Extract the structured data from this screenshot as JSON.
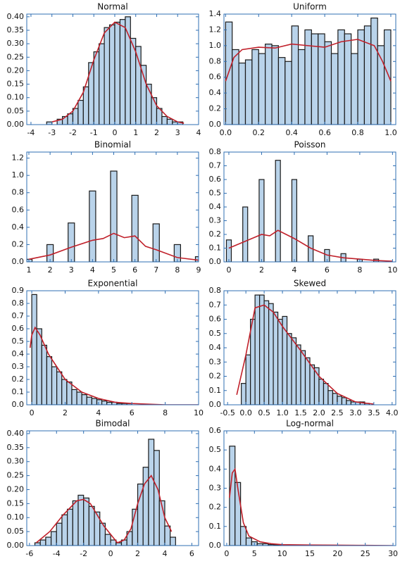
{
  "chart_data": [
    {
      "type": "histogram",
      "title": "Normal",
      "color": "#b9d3ea",
      "edgecolor": "#1a1a1a",
      "bins": [
        -3.25,
        -3,
        -2.75,
        -2.5,
        -2.25,
        -2,
        -1.75,
        -1.5,
        -1.25,
        -1,
        -0.75,
        -0.5,
        -0.25,
        0,
        0.25,
        0.5,
        0.75,
        1,
        1.25,
        1.5,
        1.75,
        2,
        2.25,
        2.5,
        2.75,
        3,
        3.25
      ],
      "values": [
        0.01,
        0.0,
        0.02,
        0.03,
        0.04,
        0.06,
        0.09,
        0.14,
        0.23,
        0.27,
        0.3,
        0.36,
        0.37,
        0.38,
        0.39,
        0.4,
        0.32,
        0.29,
        0.22,
        0.15,
        0.1,
        0.06,
        0.03,
        0.02,
        0.01,
        0.01
      ],
      "density": {
        "color": "#c0202a",
        "x": [
          -3,
          -2.5,
          -2,
          -1.5,
          -1,
          -0.5,
          0,
          0.5,
          1,
          1.5,
          2,
          2.5,
          3,
          3.3
        ],
        "values": [
          0.01,
          0.02,
          0.05,
          0.12,
          0.24,
          0.34,
          0.38,
          0.36,
          0.27,
          0.15,
          0.07,
          0.03,
          0.01,
          0.005
        ]
      },
      "xlim": [
        -4.2,
        4
      ],
      "ylim": [
        0,
        0.41
      ],
      "xticks": [
        -4,
        -3,
        -2,
        -1,
        0,
        1,
        2,
        3,
        4
      ],
      "yticks": [
        {
          "value": 0,
          "label": "0.00"
        },
        0.05,
        {
          "value": 0.1,
          "label": "0.10"
        },
        0.15,
        {
          "value": 0.2,
          "label": "0.20"
        },
        0.25,
        {
          "value": 0.3,
          "label": "0.30"
        },
        0.35,
        {
          "value": 0.4,
          "label": "0.40"
        }
      ]
    },
    {
      "type": "histogram",
      "title": "Uniform",
      "color": "#b9d3ea",
      "edgecolor": "#1a1a1a",
      "bins": [
        0,
        0.04,
        0.08,
        0.12,
        0.16,
        0.2,
        0.24,
        0.28,
        0.32,
        0.36,
        0.4,
        0.44,
        0.48,
        0.52,
        0.56,
        0.6,
        0.64,
        0.68,
        0.72,
        0.76,
        0.8,
        0.84,
        0.88,
        0.92,
        0.96,
        1.0
      ],
      "values": [
        1.3,
        0.95,
        0.78,
        0.82,
        0.95,
        0.9,
        1.02,
        1.0,
        0.85,
        0.8,
        1.25,
        0.95,
        1.2,
        1.15,
        1.15,
        1.05,
        0.9,
        1.2,
        1.15,
        0.9,
        1.2,
        1.25,
        1.35,
        1.0,
        1.2
      ],
      "density": {
        "color": "#c0202a",
        "x": [
          0,
          0.05,
          0.1,
          0.2,
          0.3,
          0.4,
          0.5,
          0.6,
          0.7,
          0.8,
          0.9,
          0.95,
          1.0
        ],
        "values": [
          0.55,
          0.85,
          0.95,
          0.98,
          0.97,
          1.02,
          1.0,
          0.98,
          1.05,
          1.08,
          1.0,
          0.8,
          0.55
        ]
      },
      "xlim": [
        -0.01,
        1.03
      ],
      "ylim": [
        0,
        1.4
      ],
      "xticks": [
        {
          "value": 0,
          "label": "0.0"
        },
        0.2,
        0.4,
        0.6,
        0.8,
        {
          "value": 1,
          "label": "1.0"
        }
      ],
      "yticks": [
        {
          "value": 0,
          "label": "0.0"
        },
        0.2,
        0.4,
        0.6,
        0.8,
        {
          "value": 1,
          "label": "1.0"
        },
        1.2,
        1.4
      ]
    },
    {
      "type": "histogram",
      "title": "Binomial",
      "color": "#b9d3ea",
      "edgecolor": "#1a1a1a",
      "bins": [
        0.85,
        1.15,
        1.85,
        2.15,
        2.85,
        3.15,
        3.85,
        4.15,
        4.85,
        5.15,
        5.85,
        6.15,
        6.85,
        7.15,
        7.85,
        8.15,
        8.85,
        9.15
      ],
      "values": [
        0.03,
        0,
        0.2,
        0,
        0.45,
        0,
        0.82,
        0,
        1.05,
        0,
        0.77,
        0,
        0.44,
        0,
        0.2,
        0,
        0.06
      ],
      "density": {
        "color": "#c0202a",
        "x": [
          1,
          2,
          3,
          4,
          4.5,
          5,
          5.5,
          6,
          6.5,
          7,
          8,
          9
        ],
        "values": [
          0.03,
          0.08,
          0.17,
          0.25,
          0.27,
          0.33,
          0.28,
          0.3,
          0.18,
          0.14,
          0.05,
          0.02
        ]
      },
      "xlim": [
        0.9,
        9
      ],
      "ylim": [
        0,
        1.27
      ],
      "xticks": [
        1,
        2,
        3,
        4,
        5,
        6,
        7,
        8,
        9
      ],
      "yticks": [
        {
          "value": 0,
          "label": "0.0"
        },
        0.2,
        0.4,
        0.6,
        0.8,
        {
          "value": 1,
          "label": "1.0"
        },
        1.2
      ]
    },
    {
      "type": "histogram",
      "title": "Poisson",
      "color": "#b9d3ea",
      "edgecolor": "#1a1a1a",
      "bins": [
        -0.15,
        0.15,
        0.85,
        1.15,
        1.85,
        2.15,
        2.85,
        3.15,
        3.85,
        4.15,
        4.85,
        5.15,
        5.85,
        6.15,
        6.85,
        7.15,
        7.85,
        8.15,
        8.85,
        9.15
      ],
      "values": [
        0.16,
        0,
        0.4,
        0,
        0.6,
        0,
        0.74,
        0,
        0.6,
        0,
        0.19,
        0,
        0.09,
        0,
        0.06,
        0,
        0.02,
        0,
        0.02
      ],
      "density": {
        "color": "#c0202a",
        "x": [
          0,
          1,
          2,
          2.5,
          3,
          3.5,
          4,
          5,
          6,
          7,
          8,
          9,
          10
        ],
        "values": [
          0.1,
          0.15,
          0.2,
          0.19,
          0.23,
          0.2,
          0.17,
          0.1,
          0.05,
          0.03,
          0.02,
          0.01,
          0.005
        ]
      },
      "xlim": [
        -0.3,
        10.2
      ],
      "ylim": [
        0,
        0.8
      ],
      "xticks": [
        0,
        2,
        4,
        6,
        8,
        10
      ],
      "yticks": [
        {
          "value": 0,
          "label": "0.0"
        },
        0.1,
        0.2,
        0.3,
        0.4,
        0.5,
        0.6,
        0.7,
        0.8
      ]
    },
    {
      "type": "histogram",
      "title": "Exponential",
      "color": "#b9d3ea",
      "edgecolor": "#1a1a1a",
      "bins": [
        0,
        0.3,
        0.6,
        0.9,
        1.2,
        1.5,
        1.8,
        2.1,
        2.4,
        2.7,
        3,
        3.3,
        3.6,
        3.9,
        4.2,
        4.5,
        4.8,
        5.1,
        5.4,
        5.7,
        6
      ],
      "values": [
        0.87,
        0.6,
        0.47,
        0.38,
        0.3,
        0.26,
        0.2,
        0.18,
        0.12,
        0.1,
        0.08,
        0.06,
        0.05,
        0.04,
        0.03,
        0.02,
        0.02,
        0.01,
        0.01,
        0.01
      ],
      "density": {
        "color": "#c0202a",
        "x": [
          -0.1,
          0,
          0.2,
          0.5,
          1,
          1.5,
          2,
          3,
          4,
          5,
          6,
          8,
          10
        ],
        "values": [
          0.45,
          0.55,
          0.61,
          0.55,
          0.4,
          0.3,
          0.2,
          0.1,
          0.05,
          0.02,
          0.01,
          0.0,
          0.0
        ]
      },
      "xlim": [
        -0.3,
        10
      ],
      "ylim": [
        0,
        0.9
      ],
      "xticks": [
        0,
        2,
        4,
        6,
        8,
        10
      ],
      "yticks": [
        {
          "value": 0,
          "label": "0.0"
        },
        0.1,
        0.2,
        0.3,
        0.4,
        0.5,
        0.6,
        0.7,
        0.8,
        0.9
      ]
    },
    {
      "type": "histogram",
      "title": "Skewed",
      "color": "#b9d3ea",
      "edgecolor": "#1a1a1a",
      "bins": [
        -0.125,
        0,
        0.125,
        0.25,
        0.375,
        0.5,
        0.625,
        0.75,
        0.875,
        1,
        1.125,
        1.25,
        1.375,
        1.5,
        1.625,
        1.75,
        1.875,
        2,
        2.125,
        2.25,
        2.375,
        2.5,
        2.625,
        2.75,
        2.875,
        3,
        3.125,
        3.25,
        3.375
      ],
      "values": [
        0.15,
        0.35,
        0.6,
        0.77,
        0.77,
        0.73,
        0.71,
        0.65,
        0.6,
        0.62,
        0.5,
        0.47,
        0.42,
        0.38,
        0.33,
        0.28,
        0.26,
        0.18,
        0.15,
        0.1,
        0.08,
        0.06,
        0.05,
        0.03,
        0.02,
        0.02,
        0.02,
        0.01
      ],
      "density": {
        "color": "#c0202a",
        "x": [
          -0.25,
          0,
          0.25,
          0.5,
          0.75,
          1,
          1.5,
          2,
          2.5,
          3,
          3.5
        ],
        "values": [
          0.07,
          0.35,
          0.68,
          0.7,
          0.65,
          0.55,
          0.38,
          0.2,
          0.08,
          0.02,
          0.005
        ]
      },
      "xlim": [
        -0.6,
        4.1
      ],
      "ylim": [
        0,
        0.8
      ],
      "xticks": [
        -0.5,
        {
          "value": 0,
          "label": "0.0"
        },
        0.5,
        {
          "value": 1,
          "label": "1.0"
        },
        1.5,
        {
          "value": 2,
          "label": "2.0"
        },
        2.5,
        {
          "value": 3,
          "label": "3.0"
        },
        3.5,
        {
          "value": 4,
          "label": "4.0"
        }
      ],
      "yticks": [
        {
          "value": 0,
          "label": "0.0"
        },
        0.1,
        0.2,
        0.3,
        0.4,
        0.5,
        0.6,
        0.7,
        0.8
      ]
    },
    {
      "type": "histogram",
      "title": "Bimodal",
      "color": "#b9d3ea",
      "edgecolor": "#1a1a1a",
      "bins": [
        -5.6,
        -5.2,
        -4.8,
        -4.4,
        -4,
        -3.6,
        -3.2,
        -2.8,
        -2.4,
        -2,
        -1.6,
        -1.2,
        -0.8,
        -0.4,
        0,
        0.4,
        0.8,
        1.2,
        1.6,
        2,
        2.4,
        2.8,
        3.2,
        3.6,
        4,
        4.4,
        4.8
      ],
      "values": [
        0.01,
        0.02,
        0.03,
        0.05,
        0.08,
        0.11,
        0.13,
        0.16,
        0.18,
        0.17,
        0.14,
        0.12,
        0.08,
        0.04,
        0.02,
        0.01,
        0.02,
        0.05,
        0.13,
        0.22,
        0.28,
        0.38,
        0.34,
        0.16,
        0.07,
        0.03
      ],
      "density": {
        "color": "#c0202a",
        "x": [
          -5.5,
          -4.5,
          -3.5,
          -2.5,
          -2,
          -1.5,
          -0.5,
          0.5,
          1,
          1.5,
          2,
          2.5,
          3,
          3.5,
          4,
          4.5
        ],
        "values": [
          0.01,
          0.05,
          0.11,
          0.16,
          0.165,
          0.15,
          0.07,
          0.01,
          0.02,
          0.06,
          0.15,
          0.22,
          0.25,
          0.2,
          0.1,
          0.05
        ]
      },
      "xlim": [
        -6.2,
        6.5
      ],
      "ylim": [
        0,
        0.41
      ],
      "xticks": [
        -6,
        -4,
        -2,
        0,
        2,
        4,
        6
      ],
      "yticks": [
        {
          "value": 0,
          "label": "0.00"
        },
        0.05,
        {
          "value": 0.1,
          "label": "0.10"
        },
        0.15,
        {
          "value": 0.2,
          "label": "0.20"
        },
        0.25,
        {
          "value": 0.3,
          "label": "0.30"
        },
        0.35,
        {
          "value": 0.4,
          "label": "0.40"
        }
      ]
    },
    {
      "type": "histogram",
      "title": "Log-normal",
      "color": "#b9d3ea",
      "edgecolor": "#1a1a1a",
      "bins": [
        0.5,
        1.5,
        2.5,
        3.5,
        4.5,
        5.5,
        6.5,
        7.5,
        8.5,
        9.5,
        10.5
      ],
      "values": [
        0.52,
        0.33,
        0.1,
        0.04,
        0.02,
        0.01,
        0.01,
        0.005,
        0.003,
        0.002
      ],
      "density": {
        "color": "#c0202a",
        "x": [
          0.5,
          1,
          1.5,
          2,
          3,
          4,
          6,
          8,
          10,
          15,
          20,
          25,
          30
        ],
        "values": [
          0.25,
          0.38,
          0.4,
          0.3,
          0.12,
          0.05,
          0.02,
          0.01,
          0.005,
          0.003,
          0.002,
          0.001,
          0.0
        ]
      },
      "xlim": [
        -0.5,
        30.5
      ],
      "ylim": [
        0,
        0.6
      ],
      "xticks": [
        0,
        5,
        10,
        15,
        20,
        25,
        30
      ],
      "yticks": [
        {
          "value": 0,
          "label": "0.0"
        },
        0.1,
        0.2,
        0.3,
        0.4,
        0.5,
        0.6
      ]
    }
  ]
}
